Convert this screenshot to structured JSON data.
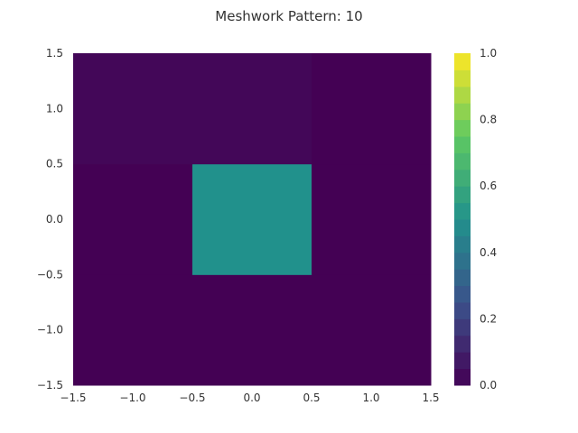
{
  "chart_data": {
    "type": "heatmap",
    "title": "Meshwork Pattern: 10",
    "xlabel": "",
    "ylabel": "",
    "xlim": [
      -1.5,
      1.5
    ],
    "ylim": [
      -1.5,
      1.5
    ],
    "x_ticks": [
      "−1.5",
      "−1.0",
      "−0.5",
      "0.0",
      "0.5",
      "1.0",
      "1.5"
    ],
    "y_ticks": [
      "−1.5",
      "−1.0",
      "−0.5",
      "0.0",
      "0.5",
      "1.0",
      "1.5"
    ],
    "x_edges": [
      -1.5,
      -0.5,
      0.5,
      1.5
    ],
    "y_edges": [
      -1.5,
      -0.5,
      0.5,
      1.5
    ],
    "values": [
      [
        0.0,
        0.0,
        0.0
      ],
      [
        0.0,
        0.5,
        0.0
      ],
      [
        0.02,
        0.02,
        0.0
      ]
    ],
    "colorbar": {
      "range": [
        0.0,
        1.0
      ],
      "ticks": [
        "0.0",
        "0.2",
        "0.4",
        "0.6",
        "0.8",
        "1.0"
      ],
      "levels": 20,
      "colormap": "viridis"
    },
    "grid": false
  }
}
